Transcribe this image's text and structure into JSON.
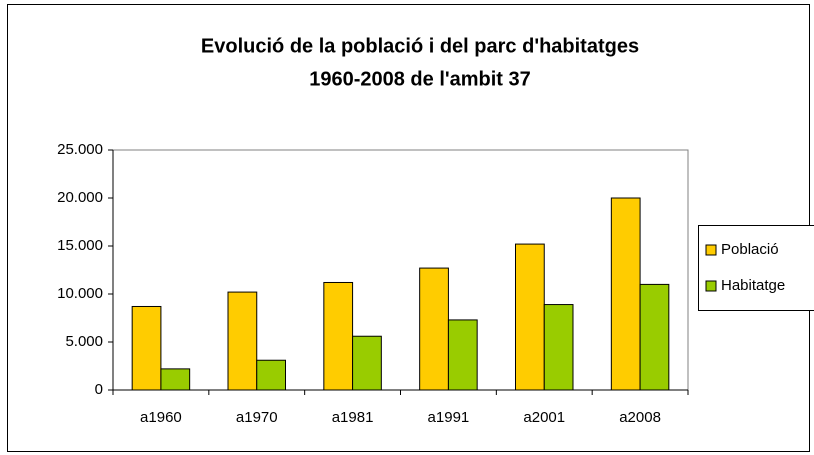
{
  "chart_data": {
    "type": "bar",
    "title": [
      "Evolució de la població i del parc d'habitatges",
      "1960-2008 de l'ambit 37"
    ],
    "categories": [
      "a1960",
      "a1970",
      "a1981",
      "a1991",
      "a2001",
      "a2008"
    ],
    "series": [
      {
        "name": "Població",
        "color": "#ffcc00",
        "values": [
          8700,
          10200,
          11200,
          12700,
          15200,
          20000
        ]
      },
      {
        "name": "Habitatge",
        "color": "#99cc00",
        "values": [
          2200,
          3100,
          5600,
          7300,
          8900,
          11000
        ]
      }
    ],
    "ylim": [
      0,
      25000
    ],
    "yticks": [
      0,
      {
        "value": 5000,
        "label": "5.000"
      },
      {
        "value": 10000,
        "label": "10.000"
      },
      {
        "value": 15000,
        "label": "15.000"
      },
      {
        "value": 20000,
        "label": "20.000"
      },
      {
        "value": 25000,
        "label": "25.000"
      }
    ],
    "legend": "right"
  }
}
